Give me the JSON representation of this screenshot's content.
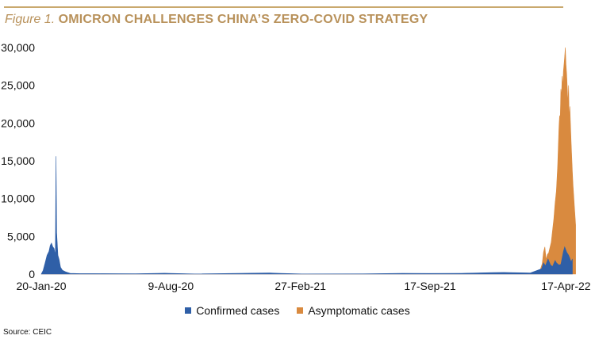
{
  "header": {
    "figure_label": "Figure 1.",
    "title": "OMICRON CHALLENGES CHINA’S ZERO-COVID STRATEGY"
  },
  "source": "Source: CEIC",
  "colors": {
    "accent": "#c9a96e",
    "title": "#b8915a",
    "confirmed": "#2f5fa7",
    "asymptomatic": "#d98a3f"
  },
  "chart_data": {
    "type": "area",
    "title": "OMICRON CHALLENGES CHINA’S ZERO-COVID STRATEGY",
    "xlabel": "",
    "ylabel": "",
    "ylim": [
      0,
      30000
    ],
    "yticks": [
      0,
      5000,
      10000,
      15000,
      20000,
      25000,
      30000
    ],
    "ytick_labels": [
      "0",
      "5,000",
      "10,000",
      "15,000",
      "20,000",
      "25,000",
      "30,000"
    ],
    "xtick_labels": [
      "20-Jan-20",
      "9-Aug-20",
      "27-Feb-21",
      "17-Sep-21",
      "17-Apr-22"
    ],
    "xtick_dates": [
      "2020-01-20",
      "2020-08-09",
      "2021-02-27",
      "2021-09-17",
      "2022-04-17"
    ],
    "xlim": [
      "2020-01-20",
      "2022-05-05"
    ],
    "grid": false,
    "legend_position": "bottom",
    "series": [
      {
        "name": "Confirmed cases",
        "color": "#2f5fa7",
        "points": [
          [
            "2020-01-20",
            0
          ],
          [
            "2020-01-23",
            500
          ],
          [
            "2020-01-26",
            1500
          ],
          [
            "2020-01-29",
            2500
          ],
          [
            "2020-02-01",
            3000
          ],
          [
            "2020-02-03",
            3800
          ],
          [
            "2020-02-05",
            4100
          ],
          [
            "2020-02-07",
            3600
          ],
          [
            "2020-02-09",
            3400
          ],
          [
            "2020-02-11",
            2500
          ],
          [
            "2020-02-12",
            15600
          ],
          [
            "2020-02-13",
            5500
          ],
          [
            "2020-02-15",
            2500
          ],
          [
            "2020-02-17",
            1900
          ],
          [
            "2020-02-19",
            900
          ],
          [
            "2020-02-22",
            500
          ],
          [
            "2020-02-27",
            300
          ],
          [
            "2020-03-05",
            100
          ],
          [
            "2020-03-20",
            60
          ],
          [
            "2020-04-10",
            60
          ],
          [
            "2020-06-15",
            40
          ],
          [
            "2020-07-30",
            120
          ],
          [
            "2020-09-15",
            20
          ],
          [
            "2021-01-10",
            150
          ],
          [
            "2021-01-20",
            120
          ],
          [
            "2021-03-01",
            20
          ],
          [
            "2021-06-05",
            30
          ],
          [
            "2021-08-05",
            110
          ],
          [
            "2021-09-15",
            80
          ],
          [
            "2021-11-05",
            110
          ],
          [
            "2021-12-25",
            200
          ],
          [
            "2022-01-10",
            220
          ],
          [
            "2022-02-20",
            150
          ],
          [
            "2022-03-10",
            700
          ],
          [
            "2022-03-13",
            1500
          ],
          [
            "2022-03-16",
            1100
          ],
          [
            "2022-03-20",
            2000
          ],
          [
            "2022-03-24",
            1200
          ],
          [
            "2022-03-27",
            1000
          ],
          [
            "2022-03-31",
            1800
          ],
          [
            "2022-04-02",
            1500
          ],
          [
            "2022-04-06",
            1200
          ],
          [
            "2022-04-09",
            1300
          ],
          [
            "2022-04-13",
            3000
          ],
          [
            "2022-04-15",
            3600
          ],
          [
            "2022-04-18",
            2900
          ],
          [
            "2022-04-21",
            2500
          ],
          [
            "2022-04-23",
            2100
          ],
          [
            "2022-04-25",
            1600
          ],
          [
            "2022-04-27",
            2000
          ]
        ]
      },
      {
        "name": "Asymptomatic cases",
        "color": "#d98a3f",
        "points": [
          [
            "2020-01-20",
            0
          ],
          [
            "2022-02-20",
            0
          ],
          [
            "2022-03-01",
            200
          ],
          [
            "2022-03-08",
            600
          ],
          [
            "2022-03-11",
            1400
          ],
          [
            "2022-03-13",
            2900
          ],
          [
            "2022-03-15",
            3600
          ],
          [
            "2022-03-17",
            1900
          ],
          [
            "2022-03-19",
            2600
          ],
          [
            "2022-03-21",
            2800
          ],
          [
            "2022-03-23",
            3500
          ],
          [
            "2022-03-25",
            4200
          ],
          [
            "2022-03-27",
            5800
          ],
          [
            "2022-03-29",
            7300
          ],
          [
            "2022-03-31",
            9400
          ],
          [
            "2022-04-02",
            11000
          ],
          [
            "2022-04-04",
            14200
          ],
          [
            "2022-04-06",
            19500
          ],
          [
            "2022-04-07",
            21000
          ],
          [
            "2022-04-08",
            20500
          ],
          [
            "2022-04-09",
            24500
          ],
          [
            "2022-04-10",
            23500
          ],
          [
            "2022-04-11",
            26200
          ],
          [
            "2022-04-12",
            24800
          ],
          [
            "2022-04-13",
            26900
          ],
          [
            "2022-04-14",
            27800
          ],
          [
            "2022-04-15",
            28800
          ],
          [
            "2022-04-16",
            30000
          ],
          [
            "2022-04-17",
            27800
          ],
          [
            "2022-04-18",
            26400
          ],
          [
            "2022-04-19",
            24500
          ],
          [
            "2022-04-20",
            22500
          ],
          [
            "2022-04-21",
            25000
          ],
          [
            "2022-04-22",
            20500
          ],
          [
            "2022-04-23",
            22200
          ],
          [
            "2022-04-24",
            19800
          ],
          [
            "2022-04-25",
            17500
          ],
          [
            "2022-04-26",
            15500
          ],
          [
            "2022-04-27",
            13500
          ],
          [
            "2022-04-28",
            11800
          ],
          [
            "2022-04-30",
            9000
          ],
          [
            "2022-05-02",
            6500
          ]
        ]
      }
    ]
  }
}
